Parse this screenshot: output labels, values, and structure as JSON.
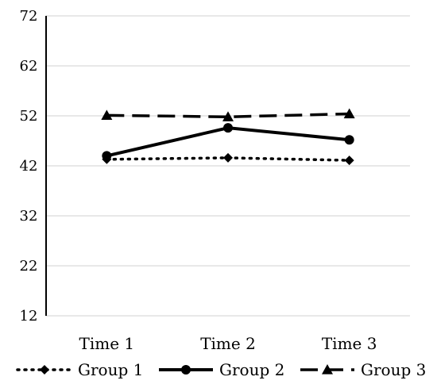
{
  "chart_data": {
    "type": "line",
    "categories": [
      "Time 1",
      "Time 2",
      "Time 3"
    ],
    "ylim": [
      12,
      72
    ],
    "yticks": [
      12,
      22,
      32,
      42,
      52,
      62,
      72
    ],
    "grid": true,
    "legend_position": "bottom",
    "series": [
      {
        "name": "Group 1",
        "values": [
          43.3,
          43.6,
          43.1
        ],
        "style": "dotted",
        "marker": "diamond",
        "color": "#000000"
      },
      {
        "name": "Group 2",
        "values": [
          44.0,
          49.6,
          47.2
        ],
        "style": "solid",
        "marker": "circle",
        "color": "#000000"
      },
      {
        "name": "Group 3",
        "values": [
          52.1,
          51.8,
          52.4
        ],
        "style": "dashed",
        "marker": "triangle",
        "color": "#000000"
      }
    ]
  }
}
